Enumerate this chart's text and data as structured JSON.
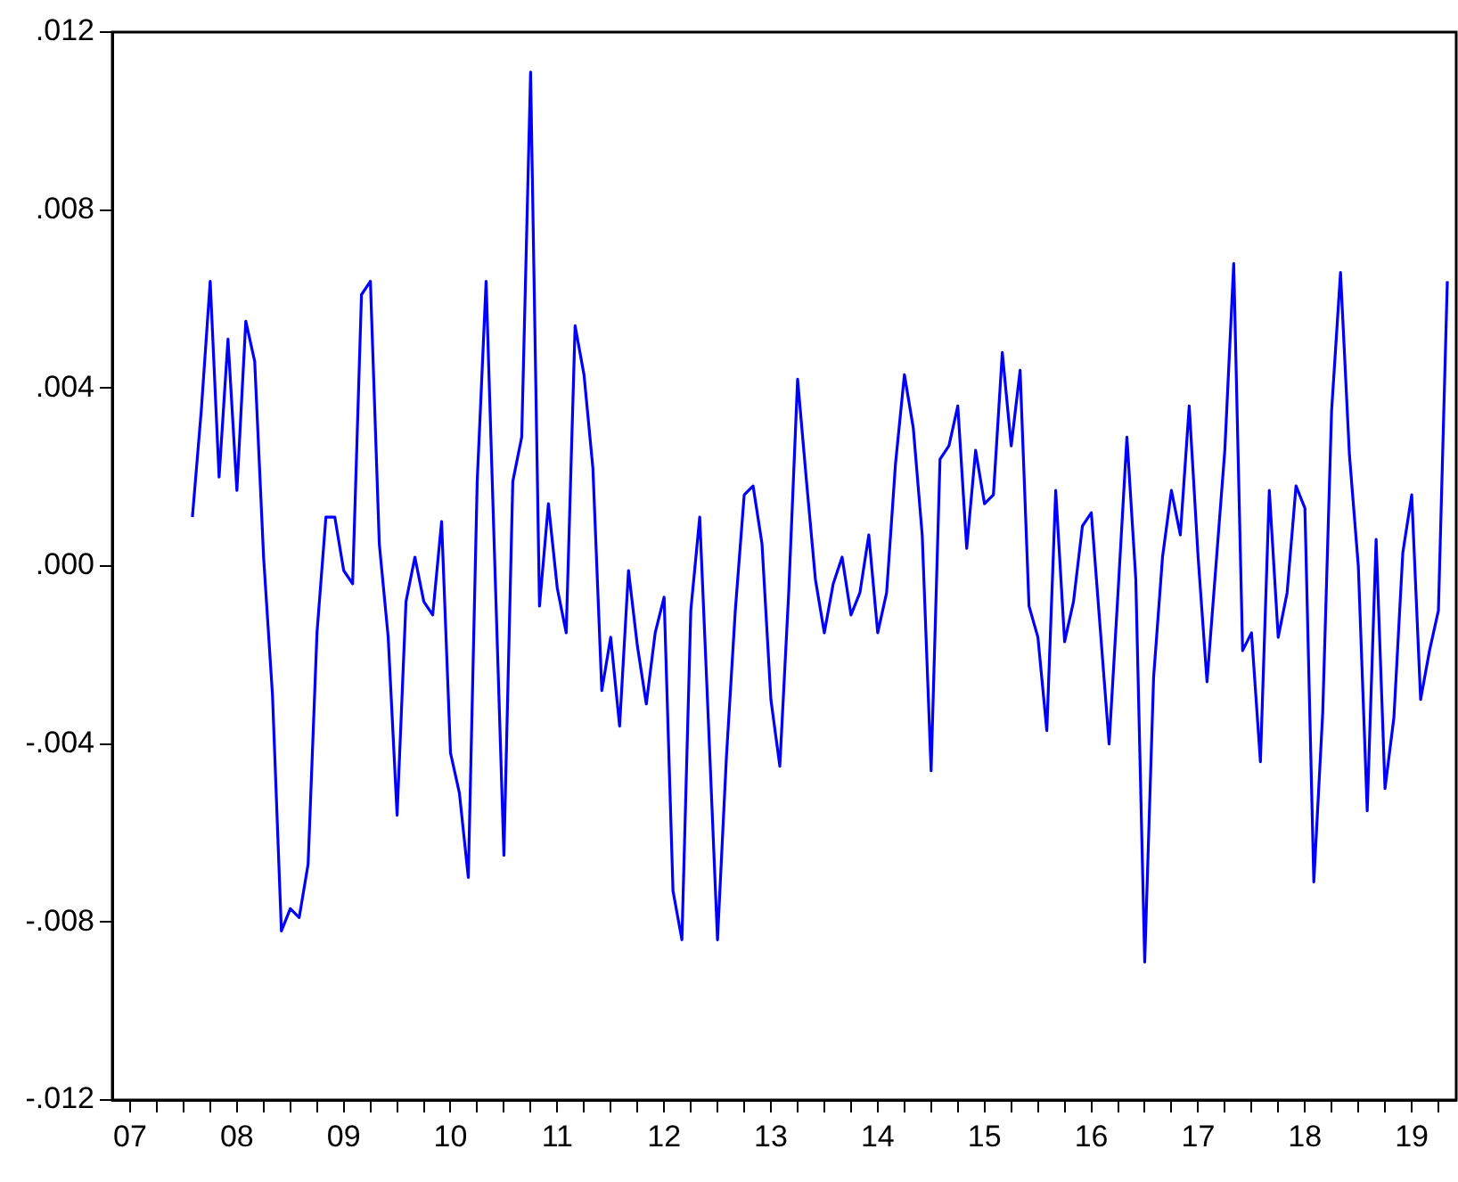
{
  "chart_data": {
    "type": "line",
    "color": "#0000ff",
    "x": [
      "2008-02",
      "2008-03",
      "2008-04",
      "2008-05",
      "2008-06",
      "2008-07",
      "2008-08",
      "2008-09",
      "2008-10",
      "2008-11",
      "2008-12",
      "2009-01",
      "2009-02",
      "2009-03",
      "2009-04",
      "2009-05",
      "2009-06",
      "2009-07",
      "2009-08",
      "2009-09",
      "2009-10",
      "2009-11",
      "2009-12",
      "2010-01",
      "2010-02",
      "2010-03",
      "2010-04",
      "2010-05",
      "2010-06",
      "2010-07",
      "2010-08",
      "2010-09",
      "2010-10",
      "2010-11",
      "2010-12",
      "2011-01",
      "2011-02",
      "2011-03",
      "2011-04",
      "2011-05",
      "2011-06",
      "2011-07",
      "2011-08",
      "2011-09",
      "2011-10",
      "2011-11",
      "2011-12",
      "2012-01",
      "2012-02",
      "2012-03",
      "2012-04",
      "2012-05",
      "2012-06",
      "2012-07",
      "2012-08",
      "2012-09",
      "2012-10",
      "2012-11",
      "2012-12",
      "2013-01",
      "2013-02",
      "2013-03",
      "2013-04",
      "2013-05",
      "2013-06",
      "2013-07",
      "2013-08",
      "2013-09",
      "2013-10",
      "2013-11",
      "2013-12",
      "2014-01",
      "2014-02",
      "2014-03",
      "2014-04",
      "2014-05",
      "2014-06",
      "2014-07",
      "2014-08",
      "2014-09",
      "2014-10",
      "2014-11",
      "2014-12",
      "2015-01",
      "2015-02",
      "2015-03",
      "2015-04",
      "2015-05",
      "2015-06",
      "2015-07",
      "2015-08",
      "2015-09",
      "2015-10",
      "2015-11",
      "2015-12",
      "2016-01",
      "2016-02",
      "2016-03",
      "2016-04",
      "2016-05",
      "2016-06",
      "2016-07",
      "2016-08",
      "2016-09",
      "2016-10",
      "2016-11",
      "2016-12",
      "2017-01",
      "2017-02",
      "2017-03",
      "2017-04",
      "2017-05",
      "2017-06",
      "2017-07",
      "2017-08",
      "2017-09",
      "2017-10",
      "2017-11",
      "2017-12",
      "2018-01",
      "2018-02",
      "2018-03",
      "2018-04",
      "2018-05",
      "2018-06",
      "2018-07",
      "2018-08",
      "2018-09",
      "2018-10",
      "2018-11",
      "2018-12",
      "2019-01",
      "2019-02",
      "2019-03",
      "2019-04",
      "2019-05",
      "2019-06",
      "2019-07",
      "2019-08",
      "2019-09",
      "2019-10",
      "2019-11"
    ],
    "values": [
      0.0011,
      0.0035,
      0.0064,
      0.002,
      0.0051,
      0.0017,
      0.0055,
      0.0046,
      0.0002,
      -0.0029,
      -0.0082,
      -0.0077,
      -0.0079,
      -0.0067,
      -0.0015,
      0.0011,
      0.0011,
      -0.0001,
      -0.0004,
      0.0061,
      0.0064,
      0.0005,
      -0.0016,
      -0.0056,
      -0.0008,
      0.0002,
      -0.0008,
      -0.0011,
      0.001,
      -0.0042,
      -0.0051,
      -0.007,
      0.0019,
      0.0064,
      -0.0001,
      -0.0065,
      0.0019,
      0.0029,
      0.0111,
      -0.0009,
      0.0014,
      -0.0005,
      -0.0015,
      0.0054,
      0.0043,
      0.0022,
      -0.0028,
      -0.0016,
      -0.0036,
      -0.0001,
      -0.0018,
      -0.0031,
      -0.0015,
      -0.0007,
      -0.0073,
      -0.0084,
      -0.001,
      0.0011,
      -0.0036,
      -0.0084,
      -0.0043,
      -0.001,
      0.0016,
      0.0018,
      0.0005,
      -0.003,
      -0.0045,
      -0.0006,
      0.0042,
      0.0019,
      -0.0003,
      -0.0015,
      -0.0004,
      0.0002,
      -0.0011,
      -0.0006,
      0.0007,
      -0.0015,
      -0.0006,
      0.0023,
      0.0043,
      0.0031,
      0.0007,
      -0.0046,
      0.0024,
      0.0027,
      0.0036,
      0.0004,
      0.0026,
      0.0014,
      0.0016,
      0.0048,
      0.0027,
      0.0044,
      -0.0009,
      -0.0016,
      -0.0037,
      0.0017,
      -0.0017,
      -0.0008,
      0.0009,
      0.0012,
      -0.0014,
      -0.004,
      -0.0006,
      0.0029,
      -0.0003,
      -0.0089,
      -0.0025,
      0.0002,
      0.0017,
      0.0007,
      0.0036,
      0.0002,
      -0.0026,
      0,
      0.0026,
      0.0068,
      -0.0019,
      -0.0015,
      -0.0044,
      0.0017,
      -0.0016,
      -0.0006,
      0.0018,
      0.0013,
      -0.0071,
      -0.0033,
      0.0035,
      0.0066,
      0.0025,
      0,
      -0.0055,
      0.0006,
      -0.005,
      -0.0034,
      0.0003,
      0.0016,
      -0.003,
      -0.0019,
      -0.001,
      0.0064
    ],
    "xlim": [
      "2007-05",
      "2019-12"
    ],
    "xticks": [
      {
        "value": "2007-07",
        "label": "07"
      },
      {
        "value": "2007-10",
        "label": null
      },
      {
        "value": "2008-01",
        "label": null
      },
      {
        "value": "2008-04",
        "label": null
      },
      {
        "value": "2008-07",
        "label": "08"
      },
      {
        "value": "2008-10",
        "label": null
      },
      {
        "value": "2009-01",
        "label": null
      },
      {
        "value": "2009-04",
        "label": null
      },
      {
        "value": "2009-07",
        "label": "09"
      },
      {
        "value": "2009-10",
        "label": null
      },
      {
        "value": "2010-01",
        "label": null
      },
      {
        "value": "2010-04",
        "label": null
      },
      {
        "value": "2010-07",
        "label": "10"
      },
      {
        "value": "2010-10",
        "label": null
      },
      {
        "value": "2011-01",
        "label": null
      },
      {
        "value": "2011-04",
        "label": null
      },
      {
        "value": "2011-07",
        "label": "11"
      },
      {
        "value": "2011-10",
        "label": null
      },
      {
        "value": "2012-01",
        "label": null
      },
      {
        "value": "2012-04",
        "label": null
      },
      {
        "value": "2012-07",
        "label": "12"
      },
      {
        "value": "2012-10",
        "label": null
      },
      {
        "value": "2013-01",
        "label": null
      },
      {
        "value": "2013-04",
        "label": null
      },
      {
        "value": "2013-07",
        "label": "13"
      },
      {
        "value": "2013-10",
        "label": null
      },
      {
        "value": "2014-01",
        "label": null
      },
      {
        "value": "2014-04",
        "label": null
      },
      {
        "value": "2014-07",
        "label": "14"
      },
      {
        "value": "2014-10",
        "label": null
      },
      {
        "value": "2015-01",
        "label": null
      },
      {
        "value": "2015-04",
        "label": null
      },
      {
        "value": "2015-07",
        "label": "15"
      },
      {
        "value": "2015-10",
        "label": null
      },
      {
        "value": "2016-01",
        "label": null
      },
      {
        "value": "2016-04",
        "label": null
      },
      {
        "value": "2016-07",
        "label": "16"
      },
      {
        "value": "2016-10",
        "label": null
      },
      {
        "value": "2017-01",
        "label": null
      },
      {
        "value": "2017-04",
        "label": null
      },
      {
        "value": "2017-07",
        "label": "17"
      },
      {
        "value": "2017-10",
        "label": null
      },
      {
        "value": "2018-01",
        "label": null
      },
      {
        "value": "2018-04",
        "label": null
      },
      {
        "value": "2018-07",
        "label": "18"
      },
      {
        "value": "2018-10",
        "label": null
      },
      {
        "value": "2019-01",
        "label": null
      },
      {
        "value": "2019-04",
        "label": null
      },
      {
        "value": "2019-07",
        "label": "19"
      },
      {
        "value": "2019-10",
        "label": null
      }
    ],
    "ylim": [
      -0.012,
      0.012
    ],
    "yticks": [
      {
        "value": -0.012,
        "label": "-.012"
      },
      {
        "value": -0.008,
        "label": "-.008"
      },
      {
        "value": -0.004,
        "label": "-.004"
      },
      {
        "value": 0,
        "label": ".000"
      },
      {
        "value": 0.004,
        "label": ".004"
      },
      {
        "value": 0.008,
        "label": ".008"
      },
      {
        "value": 0.012,
        "label": ".012"
      }
    ]
  }
}
